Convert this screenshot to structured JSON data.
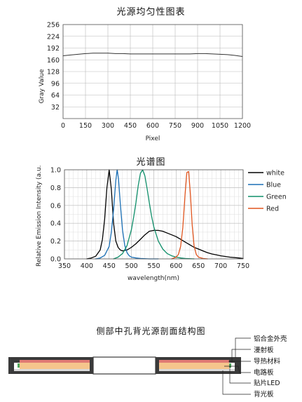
{
  "chart_data": [
    {
      "type": "line",
      "title": "光源均匀性图表",
      "xlabel": "Pixel",
      "ylabel": "Gray Value",
      "xlim": [
        0,
        1200
      ],
      "ylim": [
        0,
        256
      ],
      "xticks": [
        0,
        150,
        300,
        450,
        600,
        750,
        900,
        1050,
        1200
      ],
      "xtick_labels": [
        "0",
        "150",
        "300",
        "450",
        "600",
        "750",
        "900",
        "1050",
        "1200"
      ],
      "yticks": [
        32,
        64,
        96,
        128,
        160,
        192,
        224,
        256
      ],
      "ytick_labels": [
        "32",
        "64",
        "96",
        "128",
        "160",
        "192",
        "224",
        "256"
      ],
      "grid": true,
      "series": [
        {
          "color": "#333333",
          "x": [
            0,
            50,
            100,
            150,
            200,
            250,
            300,
            350,
            400,
            450,
            500,
            550,
            600,
            650,
            700,
            750,
            800,
            850,
            900,
            950,
            1000,
            1050,
            1100,
            1150,
            1200
          ],
          "y": [
            171,
            173,
            175,
            177,
            178,
            178,
            178,
            177,
            177,
            176,
            176,
            176,
            176,
            176,
            176,
            176,
            176,
            176,
            177,
            177,
            176,
            175,
            174,
            172,
            169
          ]
        }
      ]
    },
    {
      "type": "line",
      "title": "光谱图",
      "xlabel": "wavelength(nm)",
      "ylabel": "Relative Emission Intensity (a.u.)",
      "xlim": [
        350,
        750
      ],
      "ylim": [
        0,
        1.0
      ],
      "xticks": [
        350,
        400,
        450,
        500,
        550,
        600,
        650,
        700,
        750
      ],
      "xtick_labels": [
        "350",
        "400",
        "450",
        "500",
        "550",
        "600",
        "650",
        "700",
        "750"
      ],
      "yticks": [
        0,
        0.2,
        0.4,
        0.6,
        0.8,
        1.0
      ],
      "ytick_labels": [
        "0.0",
        "0.2",
        "0.4",
        "0.6",
        "0.8",
        "1.0"
      ],
      "grid": true,
      "legend": "right",
      "series": [
        {
          "name": "white",
          "color": "#000000",
          "x": [
            400,
            410,
            420,
            430,
            435,
            440,
            445,
            450,
            455,
            460,
            465,
            470,
            475,
            480,
            490,
            500,
            510,
            520,
            530,
            540,
            550,
            560,
            570,
            580,
            590,
            600,
            610,
            620,
            630,
            640,
            650,
            660,
            670,
            680,
            690,
            700,
            720,
            740,
            750
          ],
          "y": [
            0.0,
            0.01,
            0.03,
            0.1,
            0.22,
            0.45,
            0.8,
            1.0,
            0.78,
            0.4,
            0.2,
            0.13,
            0.1,
            0.09,
            0.1,
            0.13,
            0.17,
            0.22,
            0.27,
            0.31,
            0.32,
            0.32,
            0.31,
            0.29,
            0.27,
            0.25,
            0.22,
            0.19,
            0.16,
            0.13,
            0.11,
            0.09,
            0.07,
            0.055,
            0.045,
            0.035,
            0.02,
            0.01,
            0.005
          ]
        },
        {
          "name": "Blue",
          "color": "#1a6fb5",
          "x": [
            420,
            430,
            440,
            450,
            455,
            460,
            465,
            468,
            471,
            475,
            480,
            485,
            490,
            495,
            500,
            510,
            520,
            540,
            560
          ],
          "y": [
            0.0,
            0.01,
            0.04,
            0.14,
            0.3,
            0.55,
            0.88,
            1.0,
            0.9,
            0.62,
            0.32,
            0.15,
            0.07,
            0.035,
            0.02,
            0.01,
            0.005,
            0.0,
            0.0
          ]
        },
        {
          "name": "Green",
          "color": "#0f8f6a",
          "x": [
            460,
            470,
            480,
            490,
            500,
            505,
            510,
            515,
            520,
            525,
            530,
            535,
            540,
            545,
            550,
            560,
            570,
            580,
            590,
            600,
            610,
            620,
            640
          ],
          "y": [
            0.0,
            0.02,
            0.06,
            0.15,
            0.33,
            0.47,
            0.63,
            0.82,
            0.96,
            1.0,
            0.93,
            0.79,
            0.63,
            0.48,
            0.36,
            0.2,
            0.11,
            0.06,
            0.035,
            0.02,
            0.01,
            0.005,
            0.0
          ]
        },
        {
          "name": "Red",
          "color": "#e0551f",
          "x": [
            590,
            600,
            605,
            610,
            615,
            620,
            624,
            628,
            632,
            636,
            640,
            645,
            650,
            660,
            670
          ],
          "y": [
            0.0,
            0.02,
            0.05,
            0.14,
            0.35,
            0.72,
            0.97,
            0.98,
            0.72,
            0.38,
            0.15,
            0.05,
            0.02,
            0.005,
            0.0
          ]
        }
      ]
    }
  ],
  "diagram": {
    "title": "侧部中孔背光源剖面结构图",
    "labels": [
      "铝合金外壳",
      "漫射板",
      "导热材料",
      "电路板",
      "贴片LED",
      "背光板"
    ],
    "colors": {
      "shell": "#3a3a3a",
      "diffuser": "#ffffff",
      "thermal": "#e07a74",
      "pcb": "#f5c58c",
      "led": "#4da65a"
    }
  }
}
